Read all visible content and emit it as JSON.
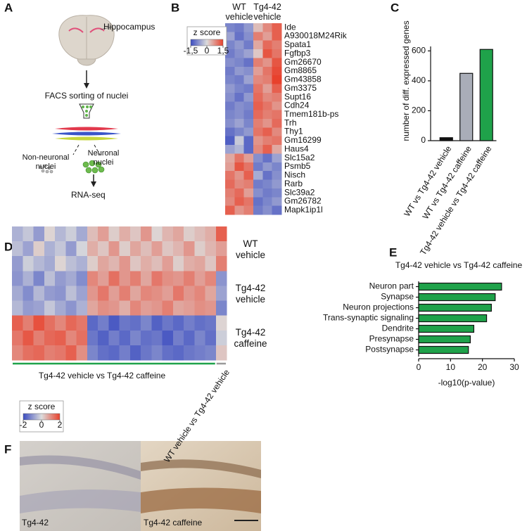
{
  "panel_labels": [
    "A",
    "B",
    "C",
    "D",
    "E",
    "F"
  ],
  "panel_a": {
    "hippocampus": "Hippocampus",
    "facs": "FACS sorting of nuclei",
    "non_neuronal": "Non-neuronal nuclei",
    "neuronal": "Neuronal nuclei",
    "rnaseq": "RNA-seq"
  },
  "panel_f": {
    "left": "Tg4-42",
    "right": "Tg4-42 caffeine"
  },
  "chart_data": [
    {
      "type": "heatmap",
      "column_groups": [
        "WT vehicle",
        "Tg4-42 vehicle"
      ],
      "rows": [
        "Ide",
        "A930018M24Rik",
        "Spata1",
        "Fgfbp3",
        "Gm26670",
        "Gm8865",
        "Gm43858",
        "Gm3375",
        "Supt16",
        "Cdh24",
        "Tmem181b-ps",
        "Trh",
        "Thy1",
        "Gm16299",
        "Haus4",
        "Slc15a2",
        "Psmb5",
        "Nisch",
        "Rarb",
        "Slc39a2",
        "Gm26782",
        "Mapk1ip1l"
      ],
      "values": [
        [
          -0.9,
          -1.0,
          -0.7,
          0.3,
          0.8,
          1.2
        ],
        [
          -0.6,
          -1.1,
          -0.8,
          0.9,
          0.6,
          1.2
        ],
        [
          -0.9,
          -0.7,
          -1.0,
          0.5,
          1.1,
          0.9
        ],
        [
          -1.0,
          -0.8,
          -0.6,
          0.2,
          1.3,
          1.0
        ],
        [
          -0.8,
          -0.9,
          -1.1,
          0.9,
          0.7,
          1.3
        ],
        [
          -1.0,
          -0.7,
          -0.8,
          0.6,
          1.0,
          1.4
        ],
        [
          -0.9,
          -1.0,
          -0.6,
          0.8,
          0.9,
          1.5
        ],
        [
          -0.7,
          -0.9,
          -1.0,
          1.0,
          0.6,
          1.2
        ],
        [
          -0.8,
          -1.1,
          -0.7,
          1.1,
          0.8,
          0.9
        ],
        [
          -1.0,
          -0.8,
          -0.9,
          1.2,
          1.0,
          0.7
        ],
        [
          -0.9,
          -0.8,
          -1.0,
          1.1,
          0.9,
          1.0
        ],
        [
          -0.8,
          -0.6,
          -0.9,
          0.9,
          0.7,
          1.1
        ],
        [
          -1.1,
          -0.9,
          -0.7,
          1.0,
          1.2,
          0.8
        ],
        [
          -1.3,
          -0.2,
          -1.2,
          0.7,
          0.9,
          1.0
        ],
        [
          -0.6,
          -0.4,
          -1.2,
          0.8,
          1.2,
          0.5
        ],
        [
          0.5,
          1.0,
          0.6,
          -0.8,
          -1.1,
          -0.6
        ],
        [
          0.6,
          1.3,
          1.0,
          -1.0,
          -0.7,
          -0.9
        ],
        [
          1.0,
          0.7,
          1.2,
          -0.5,
          -1.1,
          -0.8
        ],
        [
          1.1,
          0.8,
          0.9,
          -1.0,
          -0.9,
          -0.7
        ],
        [
          0.9,
          1.1,
          0.6,
          -0.8,
          -1.0,
          -0.9
        ],
        [
          0.8,
          1.2,
          1.0,
          -1.1,
          -0.9,
          -0.7
        ],
        [
          1.2,
          0.7,
          0.9,
          -1.0,
          -0.8,
          -1.1
        ]
      ],
      "zlim": [
        -1.5,
        1.5
      ],
      "colors": [
        "#3b4cc0",
        "#dcdcdc",
        "#e8412c"
      ],
      "colorbar": {
        "title": "z score",
        "ticks": [
          {
            "value": -1.5,
            "label": "-1,5"
          },
          0,
          {
            "value": 1.5,
            "label": "1,5"
          }
        ]
      }
    },
    {
      "type": "bar",
      "ylabel": "number of diff. expressed genes",
      "categories": [
        "WT vs Tg4-42 vehicle",
        "WT vs Tg4-42 caffeine",
        "Tg4-42 vehicle vs Tg4-42 caffeine"
      ],
      "values": [
        20,
        450,
        610
      ],
      "colors": [
        "#111111",
        "#a9adb8",
        "#1fa24a"
      ],
      "ylim": [
        0,
        630
      ],
      "yticks": [
        0,
        200,
        400,
        600
      ]
    },
    {
      "type": "heatmap",
      "row_groups": [
        "WT vehicle",
        "Tg4-42 vehicle",
        "Tg4-42 caffeine"
      ],
      "blocks": [
        {
          "name": "Tg4-42 vehicle vs Tg4-42 caffeine",
          "color": "#1fa24a",
          "values": [
            [
              -0.6,
              -0.3,
              -0.9,
              0.1,
              -0.5,
              -0.2,
              -0.7,
              0.4,
              0.8,
              0.2,
              0.6,
              0.3,
              0.9,
              0.1,
              0.5,
              0.7,
              0.2,
              0.4,
              0.6
            ],
            [
              -0.4,
              -0.8,
              0.2,
              -0.6,
              -0.3,
              -0.9,
              -0.1,
              0.6,
              0.3,
              0.9,
              0.2,
              0.7,
              0.4,
              0.8,
              0.3,
              0.5,
              0.9,
              0.2,
              0.5
            ],
            [
              -0.9,
              -0.2,
              -0.5,
              -0.7,
              0.1,
              -0.4,
              -0.6,
              0.2,
              0.7,
              0.5,
              0.9,
              0.3,
              0.6,
              0.4,
              0.8,
              0.2,
              0.6,
              0.7,
              0.3
            ],
            [
              -1.0,
              -0.6,
              -1.2,
              -0.4,
              -0.9,
              -0.7,
              -1.1,
              1.1,
              0.8,
              1.4,
              0.9,
              1.2,
              0.7,
              1.3,
              1.0,
              0.9,
              1.2,
              0.8,
              1.1
            ],
            [
              -0.7,
              -1.1,
              -0.5,
              -0.9,
              -1.0,
              -0.4,
              -0.8,
              0.9,
              1.3,
              0.8,
              1.2,
              0.7,
              1.1,
              1.0,
              0.8,
              1.3,
              0.9,
              1.1,
              0.7
            ],
            [
              -0.5,
              -0.9,
              -0.8,
              -0.3,
              -0.7,
              -1.0,
              -0.6,
              0.7,
              1.0,
              0.9,
              0.6,
              1.1,
              0.8,
              0.9,
              1.2,
              0.7,
              0.8,
              1.0,
              0.9
            ],
            [
              1.6,
              1.2,
              1.8,
              1.4,
              1.1,
              1.5,
              1.3,
              -1.6,
              -1.3,
              -1.8,
              -1.4,
              -1.5,
              -1.2,
              -1.7,
              -1.4,
              -1.6,
              -1.3,
              -1.5,
              -1.4
            ],
            [
              1.3,
              1.7,
              1.2,
              1.5,
              1.6,
              1.1,
              1.4,
              -1.4,
              -1.7,
              -1.3,
              -1.6,
              -1.2,
              -1.5,
              -1.4,
              -1.8,
              -1.3,
              -1.6,
              -1.2,
              -1.5
            ],
            [
              1.1,
              1.4,
              1.5,
              1.2,
              1.3,
              1.6,
              1.0,
              -1.2,
              -1.5,
              -1.6,
              -1.3,
              -1.7,
              -1.4,
              -1.2,
              -1.5,
              -1.6,
              -1.4,
              -1.3,
              -1.2
            ]
          ]
        },
        {
          "name": "WT vehicle vs Tg4-42 vehicle",
          "color": "#9a9a9a",
          "values": [
            [
              1.6
            ],
            [
              0.8
            ],
            [
              1.2
            ],
            [
              -1.0
            ],
            [
              -0.8
            ],
            [
              -1.2
            ],
            [
              0.1
            ],
            [
              -0.2
            ],
            [
              0.3
            ]
          ]
        }
      ],
      "zlim": [
        -2,
        2
      ],
      "colors": [
        "#3b4cc0",
        "#dcdcdc",
        "#e8412c"
      ],
      "colorbar": {
        "title": "z score",
        "ticks": [
          -2,
          0,
          2
        ]
      }
    },
    {
      "type": "barh",
      "title": "Tg4-42 vehicle vs Tg4-42 caffeine",
      "categories": [
        "Neuron part",
        "Synapse",
        "Neuron projections",
        "Trans-synaptic signaling",
        "Dendrite",
        "Presynapse",
        "Postsynapse"
      ],
      "values": [
        26,
        24,
        22.8,
        21.3,
        17.3,
        16.2,
        15.6
      ],
      "color": "#1fa24a",
      "xlabel": "-log10(p-value)",
      "xlim": [
        0,
        30
      ],
      "xticks": [
        0,
        10,
        20,
        30
      ]
    }
  ]
}
